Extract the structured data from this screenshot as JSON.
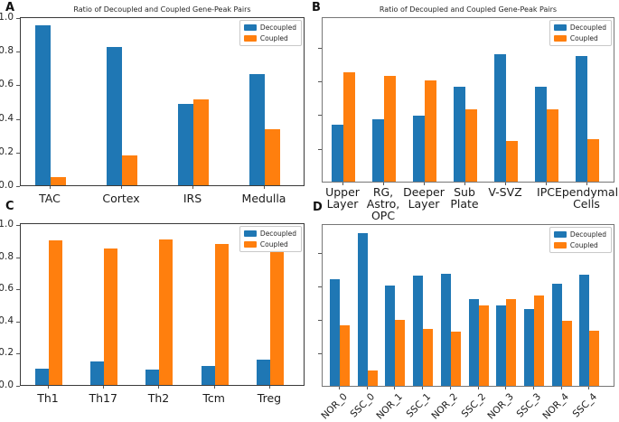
{
  "colors": {
    "decoupled": "#1f77b4",
    "coupled": "#ff7f0e",
    "legend_border": "#c9c9c9",
    "spine_dark": "#3a3a3a",
    "spine_gray": "#777777",
    "background": "#ffffff"
  },
  "chart_data": [
    {
      "panel": "A",
      "type": "bar",
      "title": "Ratio of Decoupled and Coupled Gene-Peak Pairs",
      "categories": [
        "TAC",
        "Cortex",
        "IRS",
        "Medulla"
      ],
      "series": [
        {
          "name": "Decoupled",
          "color": "#1f77b4",
          "values": [
            0.95,
            0.82,
            0.485,
            0.66
          ]
        },
        {
          "name": "Coupled",
          "color": "#ff7f0e",
          "values": [
            0.05,
            0.18,
            0.51,
            0.335
          ]
        }
      ],
      "ylim": [
        0.0,
        1.0
      ],
      "yticks": [
        0.0,
        0.2,
        0.4,
        0.6,
        0.8,
        1.0
      ],
      "ytick_labels": [
        "0.0",
        "0.2",
        "0.4",
        "0.6",
        "0.8",
        "1.0"
      ],
      "show_ytick_labels": true,
      "grid": false,
      "legend_position": "upper right",
      "xtick_rotation": 0
    },
    {
      "panel": "B",
      "type": "bar",
      "title": "Ratio of Decoupled and Coupled Gene-Peak Pairs",
      "categories": [
        "Upper\nLayer",
        "RG,\nAstro,\nOPC",
        "Deeper\nLayer",
        "Sub\nPlate",
        "V-SVZ",
        "IPC",
        "Ependymal\nCells"
      ],
      "series": [
        {
          "name": "Decoupled",
          "color": "#1f77b4",
          "values": [
            0.34,
            0.37,
            0.39,
            0.56,
            0.755,
            0.56,
            0.745
          ]
        },
        {
          "name": "Coupled",
          "color": "#ff7f0e",
          "values": [
            0.65,
            0.625,
            0.6,
            0.43,
            0.24,
            0.43,
            0.25
          ]
        }
      ],
      "ylim": [
        0.0,
        0.97
      ],
      "yticks": [
        0.2,
        0.4,
        0.6,
        0.8
      ],
      "ytick_labels": [],
      "show_ytick_labels": false,
      "grid": false,
      "legend_position": "upper right",
      "xtick_rotation": 0
    },
    {
      "panel": "C",
      "type": "bar",
      "title": "",
      "categories": [
        "Th1",
        "Th17",
        "Th2",
        "Tcm",
        "Treg"
      ],
      "series": [
        {
          "name": "Decoupled",
          "color": "#1f77b4",
          "values": [
            0.1,
            0.145,
            0.095,
            0.12,
            0.155
          ]
        },
        {
          "name": "Coupled",
          "color": "#ff7f0e",
          "values": [
            0.9,
            0.85,
            0.905,
            0.875,
            0.845
          ]
        }
      ],
      "ylim": [
        0.0,
        1.0
      ],
      "yticks": [
        0.0,
        0.2,
        0.4,
        0.6,
        0.8,
        1.0
      ],
      "ytick_labels": [
        "0.0",
        "0.2",
        "0.4",
        "0.6",
        "0.8",
        "1.0"
      ],
      "show_ytick_labels": true,
      "grid": false,
      "legend_position": "upper right",
      "xtick_rotation": 0
    },
    {
      "panel": "D",
      "type": "bar",
      "title": "",
      "categories": [
        "NOR_0",
        "SSC_0",
        "NOR_1",
        "SSC_1",
        "NOR_2",
        "SSC_2",
        "NOR_3",
        "SSC_3",
        "NOR_4",
        "SSC_4"
      ],
      "series": [
        {
          "name": "Decoupled",
          "color": "#1f77b4",
          "values": [
            0.635,
            0.91,
            0.6,
            0.655,
            0.67,
            0.52,
            0.48,
            0.46,
            0.61,
            0.665
          ]
        },
        {
          "name": "Coupled",
          "color": "#ff7f0e",
          "values": [
            0.36,
            0.09,
            0.395,
            0.34,
            0.325,
            0.48,
            0.52,
            0.54,
            0.39,
            0.33
          ]
        }
      ],
      "ylim": [
        0.0,
        0.97
      ],
      "yticks": [
        0.2,
        0.4,
        0.6,
        0.8
      ],
      "ytick_labels": [],
      "show_ytick_labels": false,
      "grid": false,
      "legend_position": "upper right",
      "xtick_rotation": 45
    }
  ]
}
